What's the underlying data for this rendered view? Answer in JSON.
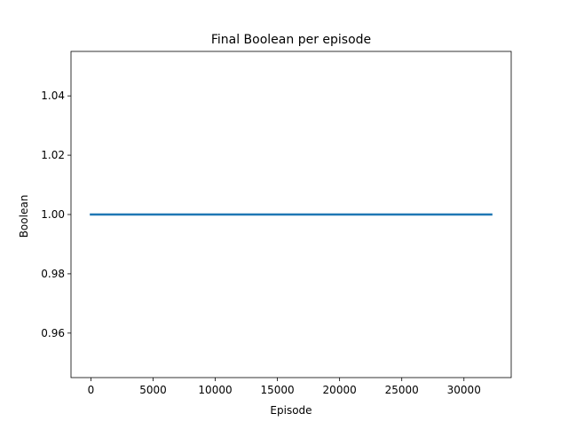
{
  "chart_data": {
    "type": "line",
    "title": "Final Boolean per episode",
    "xlabel": "Episode",
    "ylabel": "Boolean",
    "xlim": [
      -1600,
      33800
    ],
    "ylim": [
      0.945,
      1.055
    ],
    "xticks": [
      0,
      5000,
      10000,
      15000,
      20000,
      25000,
      30000
    ],
    "yticks": [
      0.96,
      0.98,
      1.0,
      1.02,
      1.04
    ],
    "xtick_labels": [
      "0",
      "5000",
      "10000",
      "15000",
      "20000",
      "25000",
      "30000"
    ],
    "ytick_labels": [
      "0.96",
      "0.98",
      "1.00",
      "1.02",
      "1.04"
    ],
    "grid": false,
    "series": [
      {
        "color": "#1f77b4",
        "x": [
          0,
          32200
        ],
        "y": [
          1.0,
          1.0
        ]
      }
    ]
  }
}
